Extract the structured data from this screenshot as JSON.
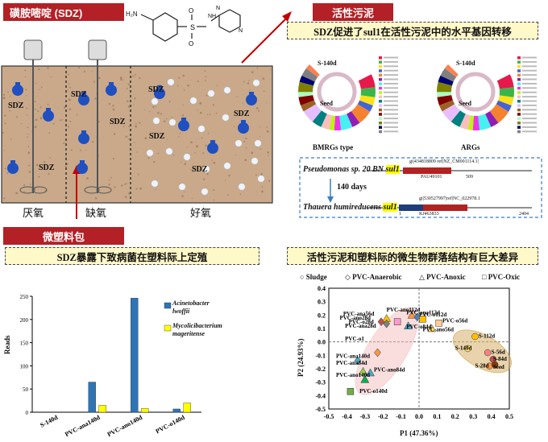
{
  "top_left": {
    "title": "磺胺嘧啶 (SDZ)",
    "chem_nh2": "H₂N",
    "chem_nh": "NH",
    "tanks": [
      "厌氧",
      "缺氧",
      "好氧"
    ],
    "sdz_labels": [
      "SDZ",
      "SDZ",
      "SDZ",
      "SDZ",
      "SDZ",
      "SDZ",
      "SDZ",
      "SDZ"
    ]
  },
  "top_right": {
    "banner": "活性污泥",
    "headline": "SDZ促进了sul1在活性污泥中的水平基因转移",
    "donut1_label": "BMRGs type",
    "donut2_label": "ARGs",
    "donut_inner": [
      "S-140d",
      "Seed"
    ],
    "gene_box": {
      "species1": "Pseudomonas sp. 20 BN",
      "gene": "sul1",
      "acc1": "gi|434818809 ref|NZ_CM001114.1|",
      "prot1": "PAU49101",
      "end1": "509",
      "days": "140 days",
      "species2": "Thauera humireducens",
      "acc2": "gi|530527997|ref|NC_022978.1",
      "prot2": "KJ463833",
      "start2": "1",
      "end2": "2404"
    }
  },
  "bottom_left": {
    "banner": "微塑料包",
    "headline": "SDZ暴露下致病菌在塑料际上定殖",
    "chart_data": {
      "type": "bar",
      "categories": [
        "S-140d",
        "PVC-ana140d",
        "PVC-ano140d",
        "PVC-o140d"
      ],
      "series": [
        {
          "name": "Acinetobacter lwoffii",
          "color": "#2e74b5",
          "values": [
            0,
            65,
            246,
            7
          ]
        },
        {
          "name": "Mycolicibacterium mageritense",
          "color": "#ffff00",
          "values": [
            0,
            15,
            8,
            20
          ]
        }
      ],
      "ylabel": "Reads",
      "ylim": [
        0,
        250
      ],
      "yticks": [
        0,
        50,
        100,
        150,
        200,
        250
      ]
    }
  },
  "bottom_right": {
    "headline": "活性污泥和塑料际的微生物群落结构有巨大差异",
    "legend": [
      "Sludge",
      "PVC-Anaerobic",
      "PVC-Anoxic",
      "PVC-Oxic"
    ],
    "chart_data": {
      "type": "scatter",
      "xlabel": "P1 (47.36%)",
      "ylabel": "P2 (24.93%)",
      "xlim": [
        -0.5,
        0.5
      ],
      "ylim": [
        -0.5,
        0.4
      ],
      "xticks": [
        "-0.5",
        "-0.4",
        "-0.3",
        "-0.2",
        "-0.1",
        "0.0",
        "0.1",
        "0.2",
        "0.3",
        "0.4",
        "0.5"
      ],
      "yticks": [
        "0.4",
        "0.3",
        "0.2",
        "0.1",
        "0.0",
        "-0.1",
        "-0.2",
        "-0.3",
        "-0.4",
        "-0.5"
      ],
      "points": [
        {
          "label": "PVC-ana56d",
          "x": -0.21,
          "y": 0.15,
          "shape": "diamond",
          "color": "#c0504d"
        },
        {
          "label": "PVC-ano112d",
          "x": -0.04,
          "y": 0.2,
          "shape": "triangle",
          "color": "#f79646"
        },
        {
          "label": "PVC-ana112d",
          "x": -0.01,
          "y": 0.185,
          "shape": "diamond",
          "color": "#4f81bd"
        },
        {
          "label": "PVC-o112d",
          "x": 0.02,
          "y": 0.17,
          "shape": "square",
          "color": "#ffc000"
        },
        {
          "label": "PVC-ano28d",
          "x": -0.18,
          "y": 0.175,
          "shape": "triangle",
          "color": "#ffc000"
        },
        {
          "label": "PVC-o28d",
          "x": -0.12,
          "y": 0.15,
          "shape": "square",
          "color": "#ff99cc"
        },
        {
          "label": "PVC-ana28d",
          "x": -0.18,
          "y": 0.135,
          "shape": "diamond",
          "color": "#7f7f7f"
        },
        {
          "label": "PVC-o56d",
          "x": 0.11,
          "y": 0.14,
          "shape": "square",
          "color": "#ffcc99"
        },
        {
          "label": "PVC-ano56d",
          "x": 0.07,
          "y": 0.1,
          "shape": "triangle",
          "color": "#ffd966"
        },
        {
          "label": "PVC-ano56d-b",
          "x": -0.06,
          "y": 0.12,
          "shape": "triangle",
          "color": "#4bacc6"
        },
        {
          "label": "PVC-ana84d",
          "x": -0.23,
          "y": -0.08,
          "shape": "diamond",
          "color": "#f79646"
        },
        {
          "label": "PVC-ana140d",
          "x": -0.34,
          "y": -0.14,
          "shape": "diamond",
          "color": "#4bacc6"
        },
        {
          "label": "PVC-ano140d",
          "x": -0.31,
          "y": -0.22,
          "shape": "triangle",
          "color": "#92d050"
        },
        {
          "label": "PVC-ano84d",
          "x": -0.27,
          "y": -0.23,
          "shape": "triangle",
          "color": "#4bacc6"
        },
        {
          "label": "PVC-ano140d-b",
          "x": -0.3,
          "y": -0.28,
          "shape": "triangle",
          "color": "#00b050"
        },
        {
          "label": "PVC-o140d",
          "x": -0.38,
          "y": -0.37,
          "shape": "square",
          "color": "#70ad47"
        },
        {
          "label": "S-112d",
          "x": 0.31,
          "y": 0.04,
          "shape": "circle",
          "color": "#ffc000"
        },
        {
          "label": "S-140d",
          "x": 0.27,
          "y": -0.05,
          "shape": "circle",
          "color": "#ffd966"
        },
        {
          "label": "S-56d",
          "x": 0.38,
          "y": -0.08,
          "shape": "circle",
          "color": "#ff8080"
        },
        {
          "label": "S-84d",
          "x": 0.41,
          "y": -0.13,
          "shape": "circle",
          "color": "#c0504d"
        },
        {
          "label": "S-28d",
          "x": 0.39,
          "y": -0.18,
          "shape": "circle",
          "color": "#f79646"
        },
        {
          "label": "Seed",
          "x": 0.42,
          "y": -0.17,
          "shape": "circle",
          "color": "#843c0c"
        }
      ],
      "point_text": [
        {
          "text": "PVC-ana56d",
          "x": -0.42,
          "y": 0.195
        },
        {
          "text": "PVC-ano112d",
          "x": -0.18,
          "y": 0.225
        },
        {
          "text": "PVC-ana112d",
          "x": -0.07,
          "y": 0.205
        },
        {
          "text": "PVC-o112d",
          "x": 0.0,
          "y": 0.19
        },
        {
          "text": "PVC-ano28d",
          "x": -0.44,
          "y": 0.165
        },
        {
          "text": "PVC-o56d",
          "x": 0.13,
          "y": 0.145
        },
        {
          "text": "PVC-o28d",
          "x": -0.39,
          "y": 0.135
        },
        {
          "text": "PVC-o84d",
          "x": -0.07,
          "y": 0.1
        },
        {
          "text": "PVC-ana28d",
          "x": -0.41,
          "y": 0.105
        },
        {
          "text": "PVC-ano56d",
          "x": 0.02,
          "y": 0.08
        },
        {
          "text": "PVC-o1",
          "x": -0.41,
          "y": 0.01
        },
        {
          "text": "S-112d",
          "x": 0.33,
          "y": 0.03
        },
        {
          "text": "S-140d",
          "x": 0.2,
          "y": -0.06
        },
        {
          "text": "S-56d",
          "x": 0.4,
          "y": -0.09
        },
        {
          "text": "S-84d",
          "x": 0.41,
          "y": -0.14
        },
        {
          "text": "S-28d",
          "x": 0.31,
          "y": -0.19
        },
        {
          "text": "Seed",
          "x": 0.41,
          "y": -0.2
        },
        {
          "text": "PVC-ana140d",
          "x": -0.46,
          "y": -0.12
        },
        {
          "text": "PVC-ana84d",
          "x": -0.46,
          "y": -0.17
        },
        {
          "text": "PVC-ano84d",
          "x": -0.25,
          "y": -0.22
        },
        {
          "text": "PVC-ano140d",
          "x": -0.46,
          "y": -0.26
        },
        {
          "text": "PVC-o140d",
          "x": -0.33,
          "y": -0.38
        }
      ]
    }
  }
}
